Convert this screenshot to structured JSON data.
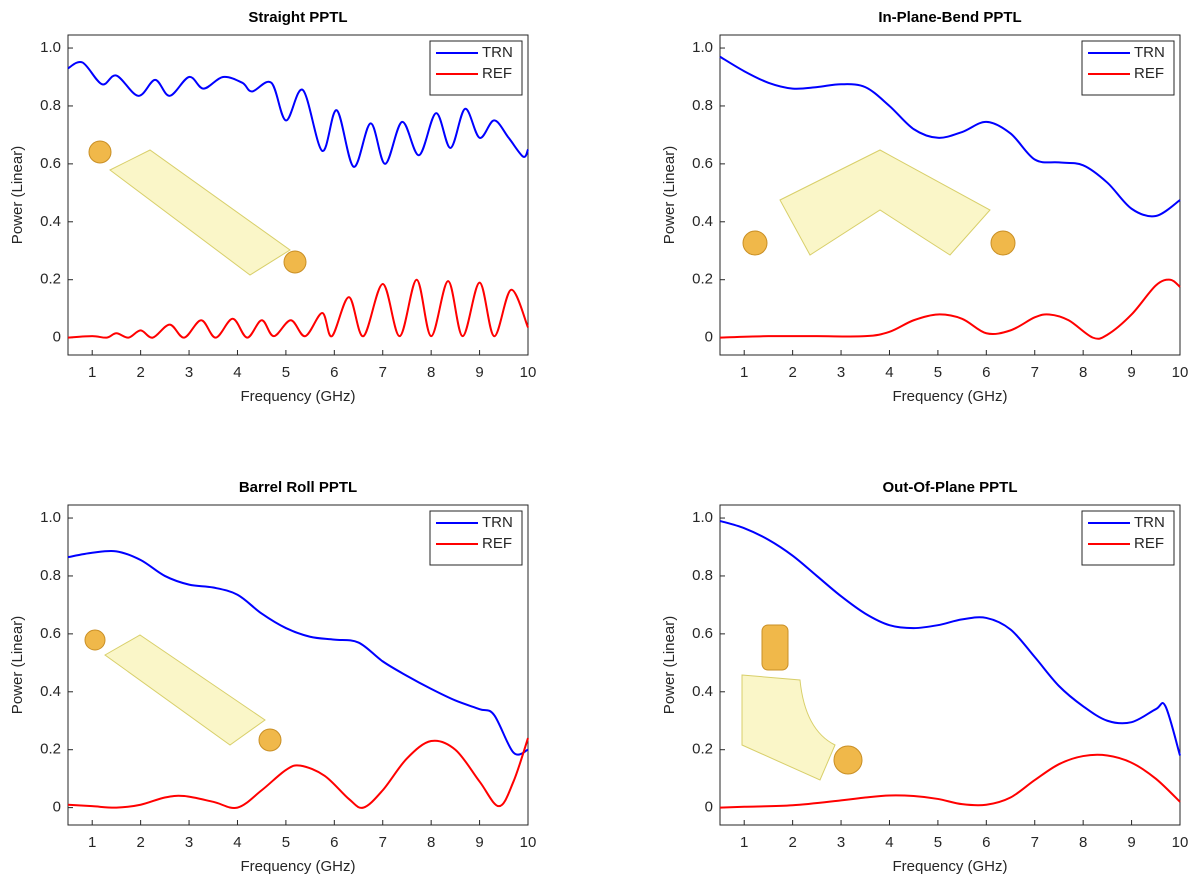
{
  "chart_data": [
    {
      "type": "line",
      "title": "Straight PPTL",
      "xlabel": "Frequency (GHz)",
      "ylabel": "Power (Linear)",
      "xlim": [
        0.5,
        10
      ],
      "ylim": [
        -0.06,
        1.045
      ],
      "xticks": [
        1,
        2,
        3,
        4,
        5,
        6,
        7,
        8,
        9,
        10
      ],
      "yticks": [
        0,
        0.2,
        0.4,
        0.6,
        0.8,
        {
          "value": 1,
          "label": "1.0"
        }
      ],
      "legend": "upper right",
      "series": [
        {
          "name": "TRN",
          "color": "#0000ff",
          "x": [
            0.5,
            0.8,
            1.2,
            1.5,
            1.95,
            2.3,
            2.6,
            3.0,
            3.3,
            3.7,
            4.1,
            4.3,
            4.7,
            5.0,
            5.35,
            5.75,
            6.05,
            6.4,
            6.75,
            7.05,
            7.4,
            7.75,
            8.1,
            8.4,
            8.7,
            9.0,
            9.3,
            9.6,
            9.9,
            10
          ],
          "values": [
            0.93,
            0.95,
            0.875,
            0.905,
            0.835,
            0.89,
            0.835,
            0.9,
            0.86,
            0.9,
            0.88,
            0.85,
            0.88,
            0.75,
            0.855,
            0.645,
            0.785,
            0.59,
            0.74,
            0.6,
            0.745,
            0.63,
            0.775,
            0.655,
            0.79,
            0.69,
            0.75,
            0.69,
            0.625,
            0.65
          ]
        },
        {
          "name": "REF",
          "color": "#ff0000",
          "x": [
            0.5,
            1,
            1.3,
            1.5,
            1.75,
            2,
            2.25,
            2.6,
            2.9,
            3.25,
            3.55,
            3.9,
            4.2,
            4.5,
            4.75,
            5.1,
            5.4,
            5.75,
            5.95,
            6.3,
            6.6,
            7.0,
            7.35,
            7.7,
            8.0,
            8.35,
            8.65,
            9.0,
            9.3,
            9.65,
            10
          ],
          "values": [
            0,
            0.005,
            0,
            0.015,
            0,
            0.025,
            0,
            0.045,
            0,
            0.06,
            0,
            0.065,
            0,
            0.06,
            0.005,
            0.06,
            0.005,
            0.085,
            0.005,
            0.14,
            0.005,
            0.185,
            0.005,
            0.2,
            0.005,
            0.195,
            0.005,
            0.19,
            0.005,
            0.165,
            0.035
          ]
        }
      ]
    },
    {
      "type": "line",
      "title": "In-Plane-Bend PPTL",
      "xlabel": "Frequency (GHz)",
      "ylabel": "Power (Linear)",
      "xlim": [
        0.5,
        10
      ],
      "ylim": [
        -0.06,
        1.045
      ],
      "xticks": [
        1,
        2,
        3,
        4,
        5,
        6,
        7,
        8,
        9,
        10
      ],
      "yticks": [
        0,
        0.2,
        0.4,
        0.6,
        0.8,
        {
          "value": 1,
          "label": "1.0"
        }
      ],
      "legend": "upper right",
      "series": [
        {
          "name": "TRN",
          "color": "#0000ff",
          "x": [
            0.5,
            1,
            1.5,
            2,
            2.5,
            3,
            3.5,
            4,
            4.5,
            5,
            5.5,
            6,
            6.5,
            7,
            7.5,
            8,
            8.5,
            9,
            9.5,
            10
          ],
          "values": [
            0.97,
            0.92,
            0.88,
            0.86,
            0.865,
            0.875,
            0.865,
            0.8,
            0.72,
            0.69,
            0.71,
            0.745,
            0.705,
            0.615,
            0.605,
            0.595,
            0.535,
            0.445,
            0.42,
            0.475
          ]
        },
        {
          "name": "REF",
          "color": "#ff0000",
          "x": [
            0.5,
            1.5,
            2.5,
            3.5,
            4,
            4.5,
            5,
            5.5,
            6,
            6.5,
            7,
            7.3,
            7.7,
            8.2,
            8.5,
            9,
            9.5,
            9.8,
            10
          ],
          "values": [
            0,
            0.005,
            0.005,
            0.005,
            0.02,
            0.06,
            0.08,
            0.065,
            0.015,
            0.025,
            0.07,
            0.08,
            0.06,
            0,
            0.01,
            0.08,
            0.18,
            0.2,
            0.175
          ]
        }
      ]
    },
    {
      "type": "line",
      "title": "Barrel Roll PPTL",
      "xlabel": "Frequency (GHz)",
      "ylabel": "Power (Linear)",
      "xlim": [
        0.5,
        10
      ],
      "ylim": [
        -0.06,
        1.045
      ],
      "xticks": [
        1,
        2,
        3,
        4,
        5,
        6,
        7,
        8,
        9,
        10
      ],
      "yticks": [
        0,
        0.2,
        0.4,
        0.6,
        0.8,
        {
          "value": 1,
          "label": "1.0"
        }
      ],
      "legend": "upper right",
      "series": [
        {
          "name": "TRN",
          "color": "#0000ff",
          "x": [
            0.5,
            1,
            1.5,
            2,
            2.5,
            3,
            3.5,
            4,
            4.5,
            5,
            5.5,
            6,
            6.5,
            7,
            7.5,
            8,
            8.5,
            9,
            9.3,
            9.7,
            10
          ],
          "values": [
            0.865,
            0.88,
            0.885,
            0.855,
            0.8,
            0.77,
            0.76,
            0.735,
            0.67,
            0.62,
            0.59,
            0.58,
            0.57,
            0.505,
            0.455,
            0.41,
            0.37,
            0.34,
            0.32,
            0.19,
            0.2
          ]
        },
        {
          "name": "REF",
          "color": "#ff0000",
          "x": [
            0.5,
            1,
            1.5,
            2,
            2.5,
            2.9,
            3.5,
            4,
            4.5,
            5,
            5.3,
            5.8,
            6.3,
            6.6,
            7,
            7.5,
            8,
            8.5,
            9,
            9.4,
            9.7,
            10
          ],
          "values": [
            0.01,
            0.005,
            0,
            0.01,
            0.035,
            0.04,
            0.02,
            0,
            0.06,
            0.13,
            0.145,
            0.11,
            0.03,
            0,
            0.06,
            0.17,
            0.23,
            0.2,
            0.09,
            0.005,
            0.09,
            0.24
          ]
        }
      ]
    },
    {
      "type": "line",
      "title": "Out-Of-Plane PPTL",
      "xlabel": "Frequency (GHz)",
      "ylabel": "Power (Linear)",
      "xlim": [
        0.5,
        10
      ],
      "ylim": [
        -0.06,
        1.045
      ],
      "xticks": [
        1,
        2,
        3,
        4,
        5,
        6,
        7,
        8,
        9,
        10
      ],
      "yticks": [
        0,
        0.2,
        0.4,
        0.6,
        0.8,
        {
          "value": 1,
          "label": "1.0"
        }
      ],
      "legend": "upper right",
      "series": [
        {
          "name": "TRN",
          "color": "#0000ff",
          "x": [
            0.5,
            1,
            1.5,
            2,
            2.5,
            3,
            3.5,
            4,
            4.5,
            5,
            5.5,
            6,
            6.5,
            7,
            7.5,
            8,
            8.5,
            9,
            9.5,
            9.7,
            10
          ],
          "values": [
            0.99,
            0.965,
            0.925,
            0.87,
            0.8,
            0.73,
            0.67,
            0.63,
            0.62,
            0.63,
            0.65,
            0.655,
            0.615,
            0.52,
            0.42,
            0.35,
            0.3,
            0.295,
            0.34,
            0.35,
            0.18
          ]
        },
        {
          "name": "REF",
          "color": "#ff0000",
          "x": [
            0.5,
            1,
            2,
            3,
            3.5,
            4,
            4.5,
            5,
            5.5,
            6,
            6.5,
            7,
            7.5,
            8,
            8.5,
            9,
            9.5,
            10
          ],
          "values": [
            0,
            0.003,
            0.008,
            0.025,
            0.035,
            0.042,
            0.04,
            0.03,
            0.012,
            0.01,
            0.035,
            0.095,
            0.15,
            0.178,
            0.18,
            0.155,
            0.1,
            0.02
          ]
        }
      ]
    }
  ]
}
